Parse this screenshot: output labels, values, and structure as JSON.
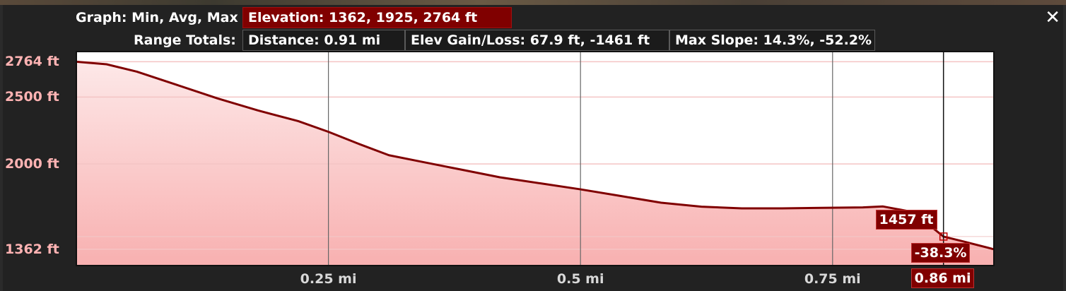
{
  "header": {
    "graph_label": "Graph: Min, Avg, Max",
    "elevation_text": "Elevation: 1362, 1925, 2764 ft",
    "range_totals_label": "Range Totals:",
    "distance_text": "Distance: 0.91 mi",
    "elev_gain_loss_text": "Elev Gain/Loss: 67.9 ft, -1461 ft",
    "max_slope_text": "Max Slope: 14.3%, -52.2%",
    "close_glyph": "✕"
  },
  "chart_data": {
    "type": "area",
    "x": [
      0,
      0.03,
      0.06,
      0.1,
      0.14,
      0.18,
      0.22,
      0.25,
      0.28,
      0.31,
      0.34,
      0.38,
      0.42,
      0.46,
      0.5,
      0.54,
      0.58,
      0.62,
      0.66,
      0.7,
      0.74,
      0.78,
      0.8,
      0.83,
      0.86,
      0.88,
      0.91
    ],
    "y": [
      2764,
      2745,
      2690,
      2590,
      2490,
      2400,
      2320,
      2240,
      2150,
      2065,
      2020,
      1960,
      1900,
      1855,
      1810,
      1760,
      1710,
      1680,
      1668,
      1668,
      1672,
      1675,
      1682,
      1640,
      1457,
      1420,
      1362
    ],
    "ylim": [
      1240,
      2840
    ],
    "xlim": [
      0,
      0.91
    ],
    "y_ticks": [
      {
        "value": 2764,
        "label": "2764 ft"
      },
      {
        "value": 2500,
        "label": "2500 ft"
      },
      {
        "value": 2000,
        "label": "2000 ft"
      },
      {
        "value": 1362,
        "label": "1362 ft"
      }
    ],
    "x_ticks": [
      {
        "value": 0.25,
        "label": "0.25 mi"
      },
      {
        "value": 0.5,
        "label": "0.5 mi"
      },
      {
        "value": 0.75,
        "label": "0.75 mi"
      }
    ],
    "cursor": {
      "x": 0.86,
      "elevation_label": "1457 ft",
      "slope_label": "-38.3%",
      "distance_label": "0.86 mi"
    },
    "grid": true,
    "colors": {
      "fill_top": "#fde8e8",
      "fill_bottom": "#f8b0b0",
      "line": "#800000",
      "background": "#ffffff",
      "tick_label": "#ffb3b3"
    }
  }
}
